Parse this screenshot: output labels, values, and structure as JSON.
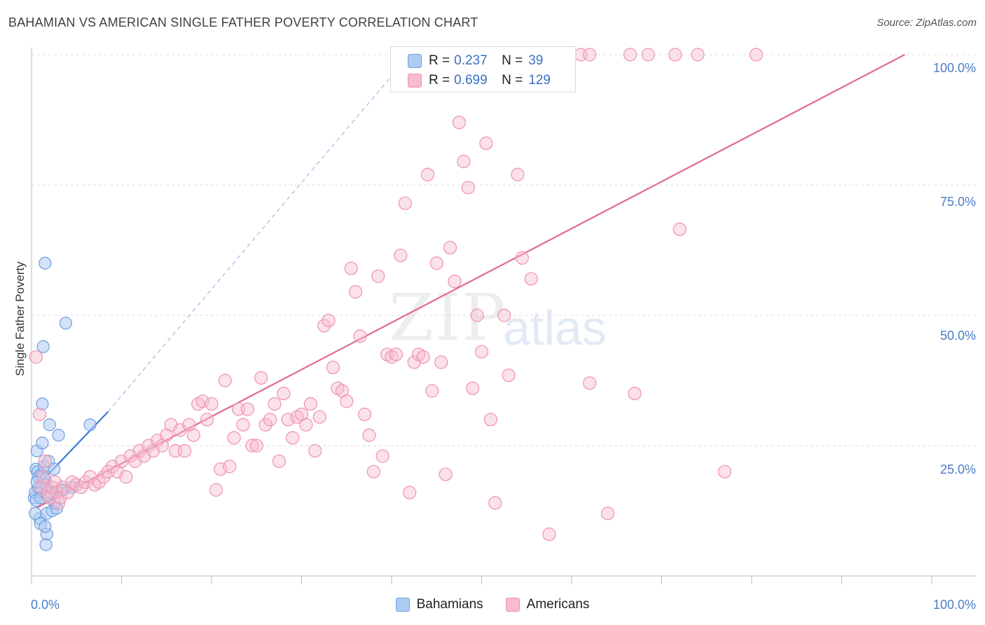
{
  "title": "BAHAMIAN VS AMERICAN SINGLE FATHER POVERTY CORRELATION CHART",
  "source": "Source: ZipAtlas.com",
  "watermark": {
    "zip": "ZIP",
    "atlas": "atlas"
  },
  "legend": {
    "rows": [
      {
        "r_label": "R =",
        "r_value": "0.237",
        "n_label": "N =",
        "n_value": "39",
        "color": "#aecbf3"
      },
      {
        "r_label": "R =",
        "r_value": "0.699",
        "n_label": "N =",
        "n_value": "129",
        "color": "#f7bccd"
      }
    ]
  },
  "bottom_legend": [
    {
      "label": "Bahamians",
      "color": "#aecbf3"
    },
    {
      "label": "Americans",
      "color": "#f7bccd"
    }
  ],
  "chart_data": {
    "type": "scatter",
    "title": "BAHAMIAN VS AMERICAN SINGLE FATHER POVERTY CORRELATION CHART",
    "xlabel": "",
    "ylabel": "Single Father Poverty",
    "xlim": [
      0,
      100
    ],
    "ylim": [
      0,
      100
    ],
    "x_tick_labels": [
      "0.0%",
      "100.0%"
    ],
    "y_tick_labels": [
      "25.0%",
      "50.0%",
      "75.0%",
      "100.0%"
    ],
    "y_ticks": [
      25,
      50,
      75,
      100
    ],
    "grid": "horizontal dashed",
    "series": [
      {
        "name": "Bahamians",
        "color": "#5b8fd8",
        "fill": "#aecbf3",
        "trend": {
          "x": [
            0.2,
            8.5
          ],
          "y": [
            16.5,
            31.5
          ],
          "extended_to": [
            42,
            100
          ]
        },
        "points": [
          [
            0.3,
            15
          ],
          [
            0.4,
            16
          ],
          [
            0.5,
            14.5
          ],
          [
            0.5,
            20.5
          ],
          [
            0.6,
            24
          ],
          [
            0.7,
            20
          ],
          [
            0.8,
            19
          ],
          [
            0.8,
            17
          ],
          [
            0.9,
            11
          ],
          [
            1.0,
            15
          ],
          [
            1.0,
            10
          ],
          [
            1.1,
            19.5
          ],
          [
            1.2,
            33
          ],
          [
            1.2,
            25.5
          ],
          [
            1.3,
            44
          ],
          [
            1.4,
            21
          ],
          [
            1.5,
            60
          ],
          [
            1.5,
            18.5
          ],
          [
            1.6,
            17.5
          ],
          [
            1.7,
            12
          ],
          [
            1.7,
            8
          ],
          [
            1.6,
            6
          ],
          [
            1.5,
            9.5
          ],
          [
            1.8,
            15.5
          ],
          [
            1.9,
            22
          ],
          [
            2.0,
            29
          ],
          [
            2.2,
            16
          ],
          [
            2.3,
            12.5
          ],
          [
            2.5,
            20.5
          ],
          [
            2.6,
            14
          ],
          [
            2.8,
            13
          ],
          [
            3.0,
            27
          ],
          [
            3.2,
            16.5
          ],
          [
            3.5,
            16.5
          ],
          [
            3.8,
            48.5
          ],
          [
            4.5,
            17
          ],
          [
            6.5,
            29
          ],
          [
            0.4,
            12
          ],
          [
            0.6,
            18
          ]
        ]
      },
      {
        "name": "Americans",
        "color": "#e06a94",
        "fill": "#f7bccd",
        "trend": {
          "x": [
            0.5,
            97
          ],
          "y": [
            13,
            100
          ]
        },
        "points": [
          [
            0.5,
            42
          ],
          [
            0.9,
            31
          ],
          [
            1.1,
            17
          ],
          [
            1.3,
            19
          ],
          [
            1.5,
            22
          ],
          [
            1.8,
            16
          ],
          [
            2.0,
            15
          ],
          [
            2.3,
            17
          ],
          [
            2.6,
            18
          ],
          [
            2.8,
            16
          ],
          [
            3.0,
            14
          ],
          [
            3.2,
            15
          ],
          [
            3.5,
            17
          ],
          [
            4.0,
            16
          ],
          [
            4.5,
            18
          ],
          [
            5.0,
            17.5
          ],
          [
            5.5,
            17
          ],
          [
            6.0,
            18
          ],
          [
            6.5,
            19
          ],
          [
            7.0,
            17.5
          ],
          [
            7.5,
            18
          ],
          [
            8.0,
            19
          ],
          [
            8.5,
            20
          ],
          [
            9.0,
            21
          ],
          [
            9.5,
            20
          ],
          [
            10.0,
            22
          ],
          [
            10.5,
            19
          ],
          [
            11.0,
            23
          ],
          [
            11.5,
            22
          ],
          [
            12.0,
            24
          ],
          [
            12.5,
            23
          ],
          [
            13.0,
            25
          ],
          [
            13.5,
            24
          ],
          [
            14.0,
            26
          ],
          [
            14.5,
            25
          ],
          [
            15.0,
            27
          ],
          [
            15.5,
            29
          ],
          [
            16.0,
            24
          ],
          [
            16.5,
            28
          ],
          [
            17.0,
            24
          ],
          [
            17.5,
            29
          ],
          [
            18.0,
            27
          ],
          [
            18.5,
            33
          ],
          [
            19.0,
            33.5
          ],
          [
            19.5,
            30
          ],
          [
            20.0,
            33
          ],
          [
            20.5,
            16.5
          ],
          [
            21.0,
            20.5
          ],
          [
            21.5,
            37.5
          ],
          [
            22.0,
            21
          ],
          [
            22.5,
            26.5
          ],
          [
            23.0,
            32
          ],
          [
            23.5,
            29
          ],
          [
            24.0,
            32
          ],
          [
            24.5,
            25
          ],
          [
            25.0,
            25
          ],
          [
            25.5,
            38
          ],
          [
            26.0,
            29
          ],
          [
            26.5,
            30
          ],
          [
            27.0,
            33
          ],
          [
            27.5,
            22
          ],
          [
            28.0,
            35
          ],
          [
            28.5,
            30
          ],
          [
            29.0,
            26.5
          ],
          [
            29.5,
            30.5
          ],
          [
            30.0,
            31
          ],
          [
            30.5,
            29
          ],
          [
            31.0,
            33
          ],
          [
            31.5,
            24
          ],
          [
            32.0,
            30.5
          ],
          [
            32.5,
            48
          ],
          [
            33.0,
            49
          ],
          [
            33.5,
            40
          ],
          [
            34.0,
            36
          ],
          [
            34.5,
            35.5
          ],
          [
            35.0,
            33.5
          ],
          [
            35.5,
            59
          ],
          [
            36.0,
            54.5
          ],
          [
            36.5,
            46
          ],
          [
            37.0,
            31
          ],
          [
            37.5,
            27
          ],
          [
            38.0,
            20
          ],
          [
            38.5,
            57.5
          ],
          [
            39.0,
            23
          ],
          [
            39.5,
            42.5
          ],
          [
            40.0,
            42
          ],
          [
            40.5,
            42.5
          ],
          [
            41.0,
            61.5
          ],
          [
            41.5,
            71.5
          ],
          [
            42.0,
            16
          ],
          [
            42.5,
            41
          ],
          [
            43.0,
            42.5
          ],
          [
            43.5,
            42
          ],
          [
            44.0,
            77
          ],
          [
            44.5,
            35.5
          ],
          [
            45.0,
            60
          ],
          [
            45.5,
            41
          ],
          [
            46.0,
            19.5
          ],
          [
            46.5,
            63
          ],
          [
            47.0,
            56.5
          ],
          [
            47.5,
            87
          ],
          [
            48.0,
            79.5
          ],
          [
            48.5,
            74.5
          ],
          [
            49.0,
            36
          ],
          [
            49.5,
            50
          ],
          [
            50.0,
            43
          ],
          [
            50.5,
            83
          ],
          [
            51.0,
            30
          ],
          [
            51.5,
            14
          ],
          [
            52.5,
            50
          ],
          [
            53.0,
            38.5
          ],
          [
            54.0,
            77
          ],
          [
            54.5,
            61
          ],
          [
            55.5,
            57
          ],
          [
            57.5,
            8
          ],
          [
            62.0,
            37
          ],
          [
            64.0,
            12
          ],
          [
            67.0,
            35
          ],
          [
            72.0,
            66.5
          ],
          [
            77.0,
            20
          ],
          [
            46.0,
            100
          ],
          [
            58.5,
            100
          ],
          [
            61.0,
            100
          ],
          [
            66.5,
            100
          ],
          [
            68.5,
            100
          ],
          [
            71.5,
            100
          ],
          [
            74.0,
            100
          ],
          [
            80.5,
            100
          ],
          [
            62.0,
            100
          ]
        ]
      }
    ]
  }
}
